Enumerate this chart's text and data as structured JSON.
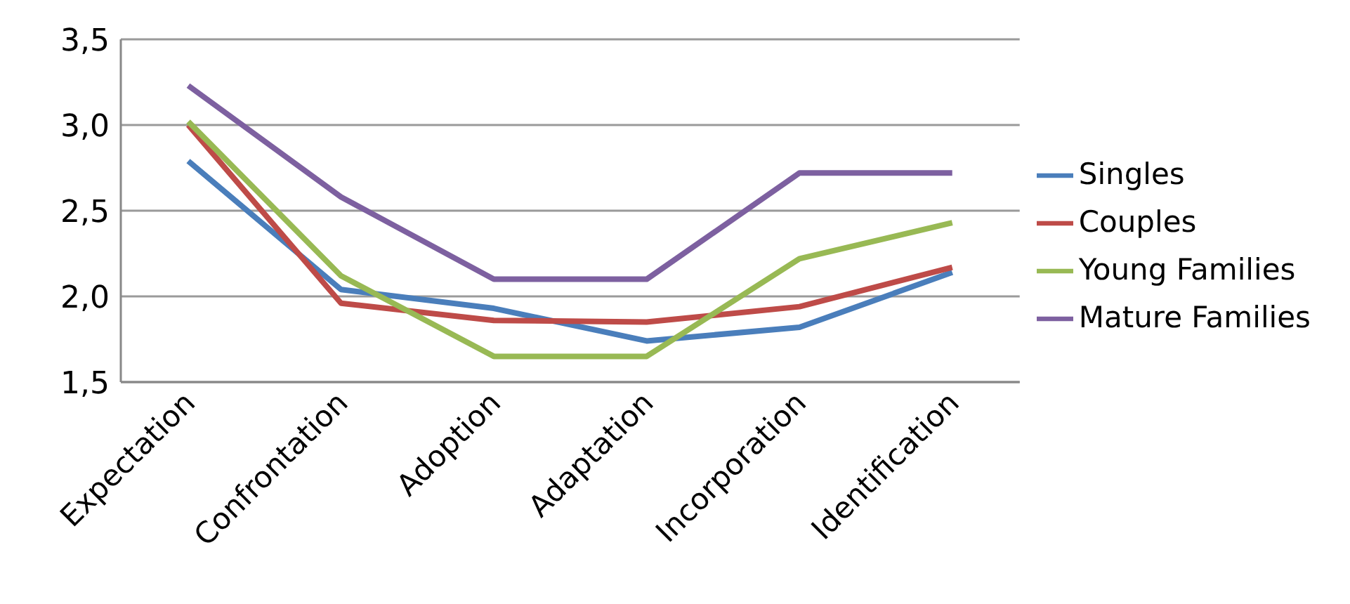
{
  "chart_data": {
    "type": "line",
    "categories": [
      "Expectation",
      "Confrontation",
      "Adoption",
      "Adaptation",
      "Incorporation",
      "Identification"
    ],
    "series": [
      {
        "name": "Singles",
        "color": "#4a7ebb",
        "values": [
          2.79,
          2.04,
          1.93,
          1.74,
          1.82,
          2.14
        ]
      },
      {
        "name": "Couples",
        "color": "#be4b48",
        "values": [
          3.0,
          1.96,
          1.86,
          1.85,
          1.94,
          2.17
        ]
      },
      {
        "name": "Young Families",
        "color": "#98b954",
        "values": [
          3.02,
          2.12,
          1.65,
          1.65,
          2.22,
          2.43
        ]
      },
      {
        "name": "Mature Families",
        "color": "#7d60a0",
        "values": [
          3.23,
          2.58,
          2.1,
          2.1,
          2.72,
          2.72
        ]
      }
    ],
    "ylim": [
      1.5,
      3.5
    ],
    "yticks": [
      {
        "value": 1.5,
        "label": "1,5"
      },
      {
        "value": 2,
        "label": "2,0"
      },
      {
        "value": 2.5,
        "label": "2,5"
      },
      {
        "value": 3,
        "label": "3,0"
      },
      {
        "value": 3.5,
        "label": "3,5"
      }
    ],
    "grid": "y",
    "legend": "right",
    "marker": "none",
    "line_style": "solid"
  }
}
